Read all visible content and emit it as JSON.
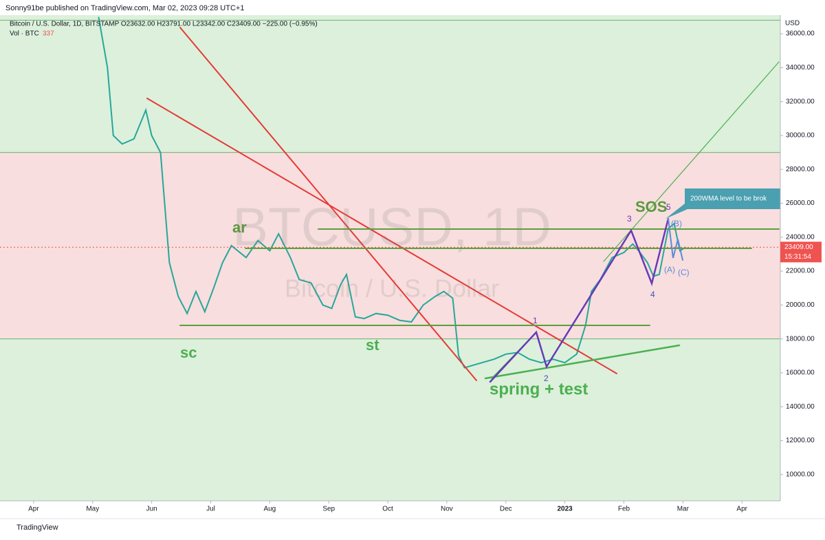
{
  "header": "Sonny91be published on TradingView.com, Mar 02, 2023 09:28 UTC+1",
  "footer": "TradingView",
  "chart_data": {
    "type": "line",
    "legend": "Bitcoin / U.S. Dollar, 1D, BITSTAMP  O23632.00  H23791.00  L23342.00  C23409.00  −225.00 (−0.95%)",
    "volume_label": "Vol · BTC",
    "volume_value": 337,
    "currency": "USD",
    "watermark": "BTCUSD, 1D",
    "watermark_sub": "Bitcoin / U.S. Dollar",
    "x": [
      1.1,
      1.25,
      1.35,
      1.5,
      1.7,
      1.9,
      2.0,
      2.15,
      2.3,
      2.45,
      2.6,
      2.75,
      2.9,
      3.05,
      3.2,
      3.35,
      3.6,
      3.8,
      4.0,
      4.15,
      4.35,
      4.5,
      4.7,
      4.9,
      5.05,
      5.2,
      5.3,
      5.45,
      5.6,
      5.8,
      6.0,
      6.2,
      6.4,
      6.6,
      6.8,
      6.95,
      7.1,
      7.2,
      7.3,
      7.5,
      7.8,
      8.0,
      8.2,
      8.4,
      8.6,
      8.8,
      9.0,
      9.2,
      9.35,
      9.45,
      9.6,
      9.8,
      10.0,
      10.15,
      10.25,
      10.4,
      10.5,
      10.6,
      10.75,
      10.85,
      10.95,
      11.05
    ],
    "series": [
      {
        "color": "#26a69a",
        "values": [
          37000,
          34000,
          30000,
          29500,
          29800,
          31500,
          30000,
          29000,
          22500,
          20500,
          19500,
          20800,
          19600,
          21000,
          22500,
          23500,
          22800,
          23800,
          23200,
          24200,
          22800,
          21500,
          21300,
          20000,
          19800,
          21200,
          21800,
          19300,
          19200,
          19500,
          19400,
          19100,
          19000,
          20000,
          20500,
          20800,
          20400,
          17000,
          16300,
          16500,
          16800,
          17100,
          17200,
          16800,
          16600,
          16800,
          16600,
          17100,
          18800,
          20800,
          21500,
          22800,
          23100,
          23600,
          23200,
          22500,
          21700,
          21800,
          24500,
          24800,
          23200,
          23409
        ]
      }
    ],
    "xlim": [
      -0.57,
      12.65
    ],
    "xticks": [
      {
        "value": 0,
        "label": "Apr"
      },
      {
        "value": 1,
        "label": "May"
      },
      {
        "value": 2,
        "label": "Jun"
      },
      {
        "value": 3,
        "label": "Jul"
      },
      {
        "value": 4,
        "label": "Aug"
      },
      {
        "value": 5,
        "label": "Sep"
      },
      {
        "value": 6,
        "label": "Oct"
      },
      {
        "value": 7,
        "label": "Nov"
      },
      {
        "value": 8,
        "label": "Dec"
      },
      {
        "value": 9,
        "label": "2023"
      },
      {
        "value": 10,
        "label": "Feb"
      },
      {
        "value": 11,
        "label": "Mar"
      },
      {
        "value": 12,
        "label": "Apr"
      }
    ],
    "ylim": [
      8450,
      37100
    ],
    "yticks": [
      {
        "value": 10000,
        "label": "10000.00"
      },
      {
        "value": 12000,
        "label": "12000.00"
      },
      {
        "value": 14000,
        "label": "14000.00"
      },
      {
        "value": 16000,
        "label": "16000.00"
      },
      {
        "value": 18000,
        "label": "18000.00"
      },
      {
        "value": 20000,
        "label": "20000.00"
      },
      {
        "value": 22000,
        "label": "22000.00"
      },
      {
        "value": 24000,
        "label": "24000.00"
      },
      {
        "value": 26000,
        "label": "26000.00"
      },
      {
        "value": 28000,
        "label": "28000.00"
      },
      {
        "value": 30000,
        "label": "30000.00"
      },
      {
        "value": 32000,
        "label": "32000.00"
      },
      {
        "value": 34000,
        "label": "34000.00"
      },
      {
        "value": 36000,
        "label": "36000.00"
      }
    ],
    "zone": {
      "from": 18000,
      "to": 29000,
      "color": "#f8dede"
    },
    "background": "#dcf0dc",
    "hlines": [
      36800,
      29000,
      18000
    ],
    "last_price": {
      "value": 23409,
      "label": "23409.00"
    },
    "countdown": "15:31:54",
    "annotations": [
      "sc",
      "ar",
      "st",
      "spring + test",
      "SOS",
      "1",
      "2",
      "3",
      "4",
      "5",
      "(A)",
      "(B)",
      "(C)",
      "200WMA level to be brok"
    ]
  }
}
